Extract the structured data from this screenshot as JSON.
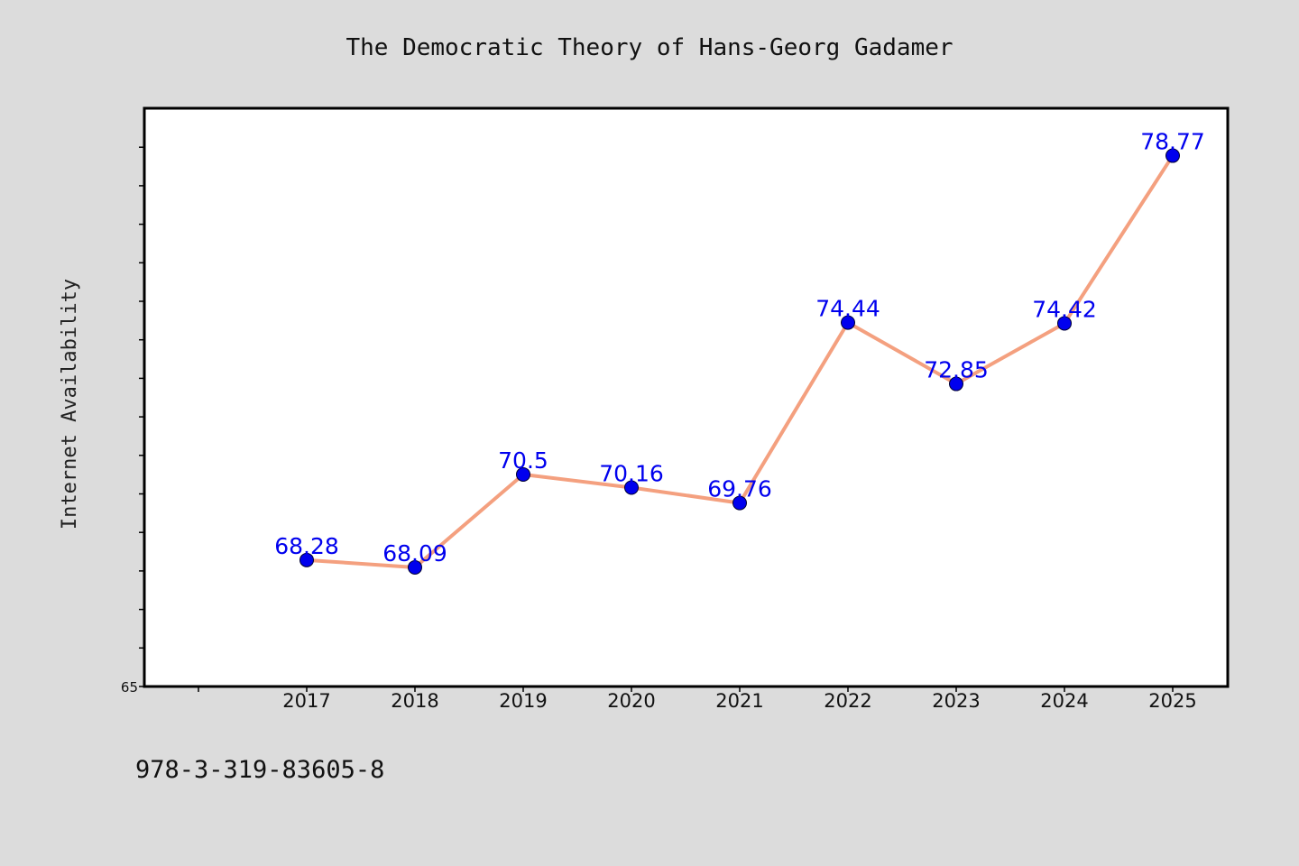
{
  "chart_data": {
    "type": "line",
    "title": "The Democratic Theory of Hans-Georg Gadamer",
    "ylabel": "Internet Availability",
    "xlabel": "",
    "x": [
      "2017",
      "2018",
      "2019",
      "2020",
      "2021",
      "2022",
      "2023",
      "2024",
      "2025"
    ],
    "series": [
      {
        "values": [
          68.28,
          68.09,
          70.5,
          70.16,
          69.76,
          74.44,
          72.85,
          74.42,
          78.77
        ],
        "labels": [
          "68.28",
          "68.09",
          "70.5",
          "70.16",
          "69.76",
          "74.44",
          "72.85",
          "74.42",
          "78.77"
        ]
      }
    ],
    "ylim": [
      65,
      80
    ],
    "y_tick_labels": [
      "65"
    ],
    "grid": false,
    "legend": "none",
    "colors": {
      "line": "#f4a07f",
      "marker": "#0000ee",
      "data_label": "#0000ee",
      "plot_bg": "#ffffff",
      "page_bg": "#dcdcdc"
    }
  },
  "footer": {
    "isbn": "978-3-319-83605-8"
  }
}
